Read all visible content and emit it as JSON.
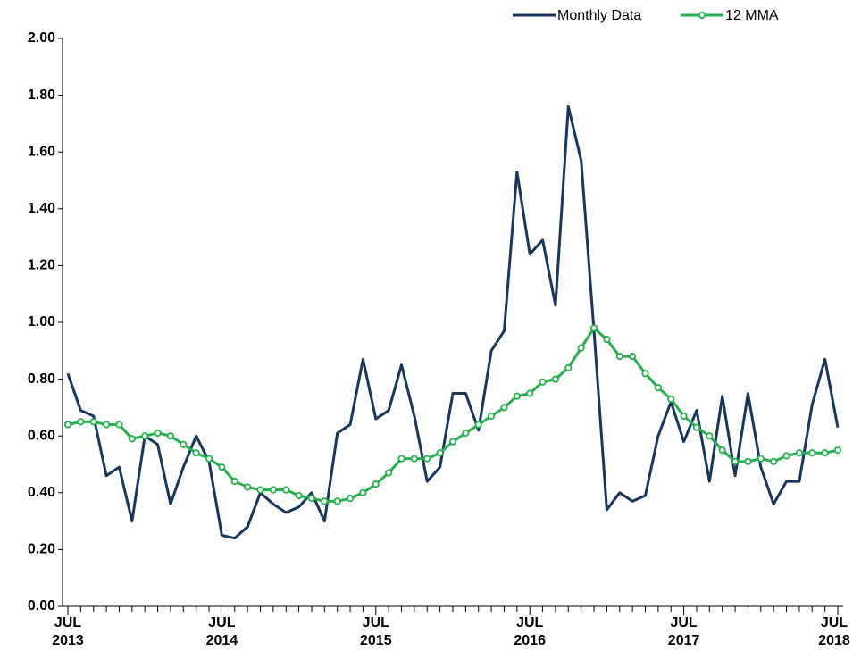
{
  "chart_data": {
    "type": "line",
    "categories": [
      "JUL 2013",
      null,
      null,
      null,
      null,
      null,
      null,
      null,
      null,
      null,
      null,
      null,
      "JUL 2014",
      null,
      null,
      null,
      null,
      null,
      null,
      null,
      null,
      null,
      null,
      null,
      "JUL 2015",
      null,
      null,
      null,
      null,
      null,
      null,
      null,
      null,
      null,
      null,
      null,
      "JUL 2016",
      null,
      null,
      null,
      null,
      null,
      null,
      null,
      null,
      null,
      null,
      null,
      "JUL 2017",
      null,
      null,
      null,
      null,
      null,
      null,
      null,
      null,
      null,
      null,
      null,
      "JUL 2018"
    ],
    "series": [
      {
        "name": "Monthly Data",
        "color": "#17375e",
        "markers": false,
        "values": [
          0.82,
          0.69,
          0.67,
          0.46,
          0.49,
          0.3,
          0.6,
          0.57,
          0.36,
          0.49,
          0.6,
          0.51,
          0.25,
          0.24,
          0.28,
          0.4,
          0.36,
          0.33,
          0.35,
          0.4,
          0.3,
          0.61,
          0.64,
          0.87,
          0.66,
          0.69,
          0.85,
          0.67,
          0.44,
          0.49,
          0.75,
          0.75,
          0.62,
          0.9,
          0.97,
          1.53,
          1.24,
          1.29,
          1.06,
          1.76,
          1.57,
          0.97,
          0.34,
          0.4,
          0.37,
          0.39,
          0.6,
          0.72,
          0.58,
          0.69,
          0.44,
          0.74,
          0.46,
          0.75,
          0.49,
          0.36,
          0.44,
          0.44,
          0.71,
          0.87,
          0.63
        ]
      },
      {
        "name": "12 MMA",
        "color": "#22b14c",
        "markers": true,
        "values": [
          0.64,
          0.65,
          0.65,
          0.64,
          0.64,
          0.59,
          0.6,
          0.61,
          0.6,
          0.57,
          0.54,
          0.52,
          0.49,
          0.44,
          0.42,
          0.41,
          0.41,
          0.41,
          0.39,
          0.38,
          0.37,
          0.37,
          0.38,
          0.4,
          0.43,
          0.47,
          0.52,
          0.52,
          0.52,
          0.54,
          0.58,
          0.61,
          0.64,
          0.67,
          0.7,
          0.74,
          0.75,
          0.79,
          0.8,
          0.84,
          0.91,
          0.98,
          0.94,
          0.88,
          0.88,
          0.82,
          0.77,
          0.73,
          0.67,
          0.63,
          0.6,
          0.55,
          0.51,
          0.51,
          0.52,
          0.51,
          0.53,
          0.54,
          0.54,
          0.54,
          0.55
        ]
      }
    ],
    "ylim": [
      0,
      2
    ],
    "yticks": [
      {
        "value": 0,
        "label": "0.00"
      },
      {
        "value": 0.2,
        "label": "0.20"
      },
      {
        "value": 0.4,
        "label": "0.40"
      },
      {
        "value": 0.6,
        "label": "0.60"
      },
      {
        "value": 0.8,
        "label": "0.80"
      },
      {
        "value": 1,
        "label": "1.00"
      },
      {
        "value": 1.2,
        "label": "1.20"
      },
      {
        "value": 1.4,
        "label": "1.40"
      },
      {
        "value": 1.6,
        "label": "1.60"
      },
      {
        "value": 1.8,
        "label": "1.80"
      },
      {
        "value": 2,
        "label": "2.00"
      }
    ],
    "grid": false,
    "legend": "top-right"
  }
}
